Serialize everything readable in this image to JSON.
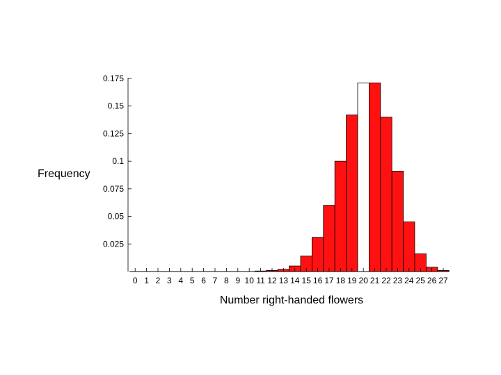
{
  "chart_data": {
    "type": "bar",
    "ylabel": "Frequency",
    "xlabel": "Number right-handed flowers",
    "categories": [
      "0",
      "1",
      "2",
      "3",
      "4",
      "5",
      "6",
      "7",
      "8",
      "9",
      "10",
      "11",
      "12",
      "13",
      "14",
      "15",
      "16",
      "17",
      "18",
      "19",
      "20",
      "21",
      "22",
      "23",
      "24",
      "25",
      "26",
      "27"
    ],
    "values": [
      0,
      0,
      0,
      0,
      0,
      0,
      0,
      0,
      0,
      0,
      0,
      0.0005,
      0.001,
      0.002,
      0.005,
      0.014,
      0.031,
      0.06,
      0.1,
      0.142,
      0.171,
      0.171,
      0.14,
      0.091,
      0.045,
      0.016,
      0.004,
      0.001
    ],
    "highlight_category": "20",
    "ylim": [
      0,
      0.175
    ],
    "yticks": [
      0.025,
      0.05,
      0.075,
      0.1,
      0.125,
      0.15,
      0.175
    ],
    "ytick_labels": [
      "0.025",
      "0.05",
      "0.075",
      "0.1",
      "0.125",
      "0.15",
      "0.175"
    ],
    "colors": {
      "bar": "#ff1111",
      "highlight": "#ffffff",
      "stroke": "#000000"
    },
    "grid": false,
    "legend": "none"
  }
}
